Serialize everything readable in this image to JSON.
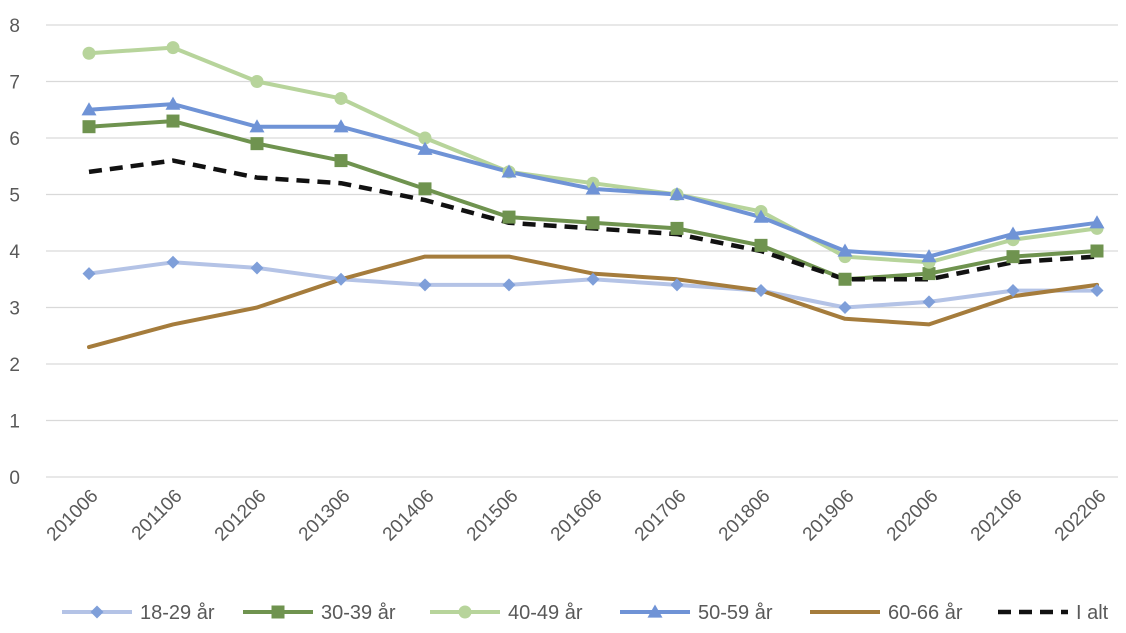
{
  "chart_data": {
    "type": "line",
    "title": "",
    "xlabel": "",
    "ylabel": "",
    "ylim": [
      0,
      8
    ],
    "y_ticks": [
      "0",
      "1",
      "2",
      "3",
      "4",
      "5",
      "6",
      "7",
      "8"
    ],
    "grid": "horizontal",
    "legend_position": "bottom",
    "categories": [
      "201006",
      "201106",
      "201206",
      "201306",
      "201406",
      "201506",
      "201606",
      "201706",
      "201806",
      "201906",
      "202006",
      "202106",
      "202206"
    ],
    "series": [
      {
        "name": "18-29 år",
        "color": "#b4c3e6",
        "marker": "diamond",
        "marker_color": "#7f9fd9",
        "dash": "solid",
        "values": [
          3.6,
          3.8,
          3.7,
          3.5,
          3.4,
          3.4,
          3.5,
          3.4,
          3.3,
          3.0,
          3.1,
          3.3,
          3.3
        ]
      },
      {
        "name": "30-39 år",
        "color": "#6f934f",
        "marker": "square",
        "marker_color": "#6f934f",
        "dash": "solid",
        "values": [
          6.2,
          6.3,
          5.9,
          5.6,
          5.1,
          4.6,
          4.5,
          4.4,
          4.1,
          3.5,
          3.6,
          3.9,
          4.0
        ]
      },
      {
        "name": "40-49 år",
        "color": "#b7d49b",
        "marker": "circle",
        "marker_color": "#b7d49b",
        "dash": "solid",
        "values": [
          7.5,
          7.6,
          7.0,
          6.7,
          6.0,
          5.4,
          5.2,
          5.0,
          4.7,
          3.9,
          3.8,
          4.2,
          4.4
        ]
      },
      {
        "name": "50-59 år",
        "color": "#6f93d6",
        "marker": "triangle",
        "marker_color": "#6f93d6",
        "dash": "solid",
        "values": [
          6.5,
          6.6,
          6.2,
          6.2,
          5.8,
          5.4,
          5.1,
          5.0,
          4.6,
          4.0,
          3.9,
          4.3,
          4.5
        ]
      },
      {
        "name": "60-66 år",
        "color": "#a57c3c",
        "marker": "none",
        "marker_color": "#a57c3c",
        "dash": "solid",
        "values": [
          2.3,
          2.7,
          3.0,
          3.5,
          3.9,
          3.9,
          3.6,
          3.5,
          3.3,
          2.8,
          2.7,
          3.2,
          3.4
        ]
      },
      {
        "name": "I alt",
        "color": "#111111",
        "marker": "none",
        "marker_color": "#111111",
        "dash": "dashed",
        "values": [
          5.4,
          5.6,
          5.3,
          5.2,
          4.9,
          4.5,
          4.4,
          4.3,
          4.0,
          3.5,
          3.5,
          3.8,
          3.9
        ]
      }
    ]
  },
  "colors": {
    "gridline": "#d9d9d9",
    "tick_text": "#595959"
  }
}
